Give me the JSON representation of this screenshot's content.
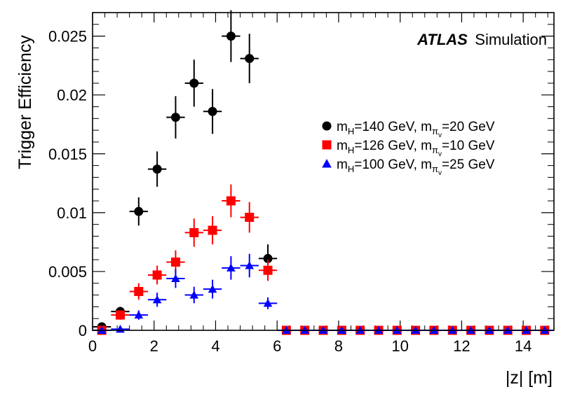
{
  "chart_data": {
    "type": "scatter",
    "title": "",
    "xlabel": "|z| [m]",
    "ylabel": "Trigger Efficiency",
    "xlim": [
      0,
      15
    ],
    "ylim": [
      0,
      0.027
    ],
    "x_ticks": [
      0,
      2,
      4,
      6,
      8,
      10,
      12,
      14
    ],
    "y_ticks": [
      0,
      0.005,
      0.01,
      0.015,
      0.02,
      0.025
    ],
    "x_tick_labels": [
      "0",
      "2",
      "4",
      "6",
      "8",
      "10",
      "12",
      "14"
    ],
    "y_tick_labels": [
      "0",
      "0.005",
      "0.01",
      "0.015",
      "0.02",
      "0.025"
    ],
    "bin_half_width": 0.3,
    "atlas_label": {
      "bold": "ATLAS",
      "rest": "Simulation"
    },
    "legend_position": "top-right",
    "series": [
      {
        "name": "mH=140 GeV, mπv=20 GeV",
        "legend_main": "m",
        "legend_sub1": "H",
        "legend_mid": "=140 GeV, m",
        "legend_sub2": "π",
        "legend_subsub": "v",
        "legend_end": "=20 GeV",
        "color": "#000000",
        "marker": "circle",
        "x": [
          0.3,
          0.9,
          1.5,
          2.1,
          2.7,
          3.3,
          3.9,
          4.5,
          5.1,
          5.7,
          6.3,
          6.9,
          7.5,
          8.1,
          8.7,
          9.3,
          9.9,
          10.5,
          11.1,
          11.7,
          12.3,
          12.9,
          13.5,
          14.1,
          14.7
        ],
        "y": [
          0.0003,
          0.0016,
          0.0101,
          0.0137,
          0.0181,
          0.021,
          0.0186,
          0.025,
          0.0231,
          0.0061,
          0,
          0,
          0,
          0,
          0,
          0,
          0,
          0,
          0,
          0,
          0,
          0,
          0,
          0,
          0
        ],
        "err": [
          0.0002,
          0.0004,
          0.0012,
          0.0015,
          0.0018,
          0.002,
          0.0019,
          0.0022,
          0.0021,
          0.0012,
          0,
          0,
          0,
          0,
          0,
          0,
          0,
          0,
          0,
          0,
          0,
          0,
          0,
          0,
          0
        ]
      },
      {
        "name": "mH=126 GeV, mπv=10 GeV",
        "legend_main": "m",
        "legend_sub1": "H",
        "legend_mid": "=126 GeV, m",
        "legend_sub2": "π",
        "legend_subsub": "v",
        "legend_end": "=10 GeV",
        "color": "#ff0000",
        "marker": "square",
        "x": [
          0.3,
          0.9,
          1.5,
          2.1,
          2.7,
          3.3,
          3.9,
          4.5,
          5.1,
          5.7,
          6.3,
          6.9,
          7.5,
          8.1,
          8.7,
          9.3,
          9.9,
          10.5,
          11.1,
          11.7,
          12.3,
          12.9,
          13.5,
          14.1,
          14.7
        ],
        "y": [
          0,
          0.0013,
          0.0033,
          0.0047,
          0.0058,
          0.0083,
          0.0085,
          0.011,
          0.0096,
          0.0051,
          0,
          0,
          0,
          0,
          0,
          0,
          0,
          0,
          0,
          0,
          0,
          0,
          0,
          0,
          0
        ],
        "err": [
          0,
          0.0004,
          0.0007,
          0.0008,
          0.001,
          0.0012,
          0.0012,
          0.0014,
          0.0013,
          0.0009,
          0,
          0,
          0,
          0,
          0,
          0,
          0,
          0,
          0,
          0,
          0,
          0,
          0,
          0,
          0
        ]
      },
      {
        "name": "mH=100 GeV, mπv=25 GeV",
        "legend_main": "m",
        "legend_sub1": "H",
        "legend_mid": "=100 GeV, m",
        "legend_sub2": "π",
        "legend_subsub": "v",
        "legend_end": "=25 GeV",
        "color": "#0000ff",
        "marker": "triangle",
        "x": [
          0.3,
          0.9,
          1.5,
          2.1,
          2.7,
          3.3,
          3.9,
          4.5,
          5.1,
          5.7,
          6.3,
          6.9,
          7.5,
          8.1,
          8.7,
          9.3,
          9.9,
          10.5,
          11.1,
          11.7,
          12.3,
          12.9,
          13.5,
          14.1,
          14.7
        ],
        "y": [
          0,
          0.0001,
          0.0013,
          0.0026,
          0.0044,
          0.003,
          0.0035,
          0.0053,
          0.0055,
          0.0023,
          0,
          0,
          0,
          0,
          0,
          0,
          0,
          0,
          0,
          0,
          0,
          0,
          0,
          0,
          0
        ],
        "err": [
          0,
          0.0001,
          0.0004,
          0.0006,
          0.0008,
          0.0007,
          0.0008,
          0.001,
          0.001,
          0.0005,
          0,
          0,
          0,
          0,
          0,
          0,
          0,
          0,
          0,
          0,
          0,
          0,
          0,
          0,
          0
        ]
      }
    ]
  }
}
